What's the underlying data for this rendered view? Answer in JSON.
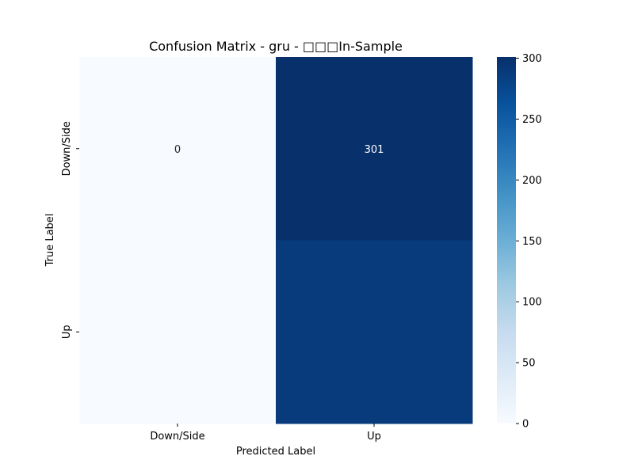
{
  "chart_data": {
    "type": "heatmap",
    "title": "Confusion Matrix - gru - □□□In-Sample",
    "xlabel": "Predicted Label",
    "ylabel": "True Label",
    "x_categories": [
      "Down/Side",
      "Up"
    ],
    "y_categories": [
      "Down/Side",
      "Up"
    ],
    "matrix": [
      [
        0,
        301
      ],
      [
        0,
        289
      ]
    ],
    "annotations": [
      [
        "0",
        "301"
      ],
      [
        "",
        ""
      ]
    ],
    "colorbar": {
      "ticks": [
        0,
        50,
        100,
        150,
        200,
        250,
        300
      ],
      "range": [
        0,
        301
      ]
    },
    "colormap": "Blues",
    "colormap_stops": [
      "#f7fbff",
      "#deebf7",
      "#c6dbef",
      "#9ecae1",
      "#6baed6",
      "#4292c6",
      "#2171b5",
      "#08519c",
      "#08306b"
    ]
  }
}
